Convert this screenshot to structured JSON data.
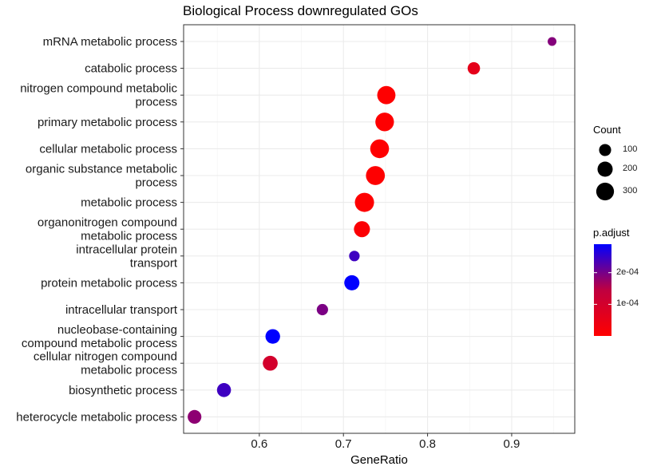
{
  "chart_data": {
    "type": "scatter",
    "title": "Biological Process downregulated GOs",
    "xlabel": "GeneRatio",
    "ylabel": "",
    "xlim": [
      0.51,
      0.975
    ],
    "xticks": [
      "0.6",
      "0.7",
      "0.8",
      "0.9"
    ],
    "grid": true,
    "legend_placement": "right",
    "categories": [
      "mRNA metabolic process",
      "catabolic process",
      "nitrogen compound metabolic process",
      "primary metabolic process",
      "cellular metabolic process",
      "organic substance metabolic process",
      "metabolic process",
      "organonitrogen compound metabolic process",
      "intracellular protein transport",
      "protein metabolic process",
      "intracellular transport",
      "nucleobase-containing compound metabolic process",
      "cellular nitrogen compound metabolic process",
      "biosynthetic process",
      "heterocycle metabolic process"
    ],
    "category_lines": [
      [
        "mRNA metabolic process"
      ],
      [
        "catabolic process"
      ],
      [
        "nitrogen compound metabolic",
        "process"
      ],
      [
        "primary metabolic process"
      ],
      [
        "cellular metabolic process"
      ],
      [
        "organic substance metabolic",
        "process"
      ],
      [
        "metabolic process"
      ],
      [
        "organonitrogen compound",
        "metabolic process"
      ],
      [
        "intracellular protein",
        "transport"
      ],
      [
        "protein metabolic process"
      ],
      [
        "intracellular transport"
      ],
      [
        "nucleobase-containing",
        "compound metabolic process"
      ],
      [
        "cellular nitrogen compound",
        "metabolic process"
      ],
      [
        "biosynthetic process"
      ],
      [
        "heterocycle metabolic process"
      ]
    ],
    "points": [
      {
        "term": "mRNA metabolic process",
        "gene_ratio": 0.948,
        "count": 20,
        "p_adjust": 0.00014
      },
      {
        "term": "catabolic process",
        "gene_ratio": 0.855,
        "count": 110,
        "p_adjust": 3e-05
      },
      {
        "term": "nitrogen compound metabolic process",
        "gene_ratio": 0.751,
        "count": 320,
        "p_adjust": 1e-06
      },
      {
        "term": "primary metabolic process",
        "gene_ratio": 0.749,
        "count": 335,
        "p_adjust": 1e-06
      },
      {
        "term": "cellular metabolic process",
        "gene_ratio": 0.743,
        "count": 345,
        "p_adjust": 1e-06
      },
      {
        "term": "organic substance metabolic process",
        "gene_ratio": 0.738,
        "count": 350,
        "p_adjust": 1e-06
      },
      {
        "term": "metabolic process",
        "gene_ratio": 0.725,
        "count": 360,
        "p_adjust": 1e-06
      },
      {
        "term": "organonitrogen compound metabolic process",
        "gene_ratio": 0.722,
        "count": 230,
        "p_adjust": 5e-06
      },
      {
        "term": "intracellular protein transport",
        "gene_ratio": 0.713,
        "count": 60,
        "p_adjust": 0.00022
      },
      {
        "term": "protein metabolic process",
        "gene_ratio": 0.71,
        "count": 200,
        "p_adjust": 0.00029
      },
      {
        "term": "intracellular transport",
        "gene_ratio": 0.675,
        "count": 80,
        "p_adjust": 0.00015
      },
      {
        "term": "nucleobase-containing compound metabolic process",
        "gene_ratio": 0.616,
        "count": 180,
        "p_adjust": 0.00029
      },
      {
        "term": "cellular nitrogen compound metabolic process",
        "gene_ratio": 0.613,
        "count": 190,
        "p_adjust": 5e-05
      },
      {
        "term": "biosynthetic process",
        "gene_ratio": 0.558,
        "count": 160,
        "p_adjust": 0.00022
      },
      {
        "term": "heterocycle metabolic process",
        "gene_ratio": 0.523,
        "count": 150,
        "p_adjust": 0.00013
      }
    ],
    "size_legend": {
      "title": "Count",
      "values": [
        100,
        200,
        300
      ],
      "labels": [
        "100",
        "200",
        "300"
      ]
    },
    "color_legend": {
      "title": "p.adjust",
      "low_color": "#FF0000",
      "high_color": "#0000FF",
      "min": 1e-07,
      "max": 0.00029,
      "tick_values": [
        2e-05,
        0.0001,
        0.0002
      ],
      "tick_labels": [
        "1e-04",
        "2e-04"
      ],
      "tick_label_values": [
        0.0001,
        0.0002
      ]
    }
  }
}
